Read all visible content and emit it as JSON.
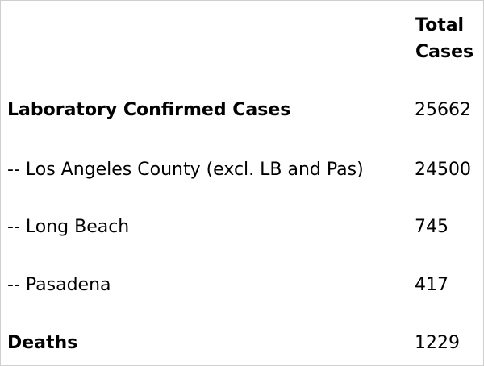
{
  "table": {
    "header": {
      "line1": "Total",
      "line2": "Cases"
    },
    "rows": [
      {
        "label": "Laboratory Confirmed Cases",
        "value": "25662"
      },
      {
        "label": "-- Los Angeles County (excl. LB and Pas)",
        "value": "24500"
      },
      {
        "label": "-- Long Beach",
        "value": "745"
      },
      {
        "label": "-- Pasadena",
        "value": "417"
      },
      {
        "label": "Deaths",
        "value": "1229"
      }
    ]
  }
}
